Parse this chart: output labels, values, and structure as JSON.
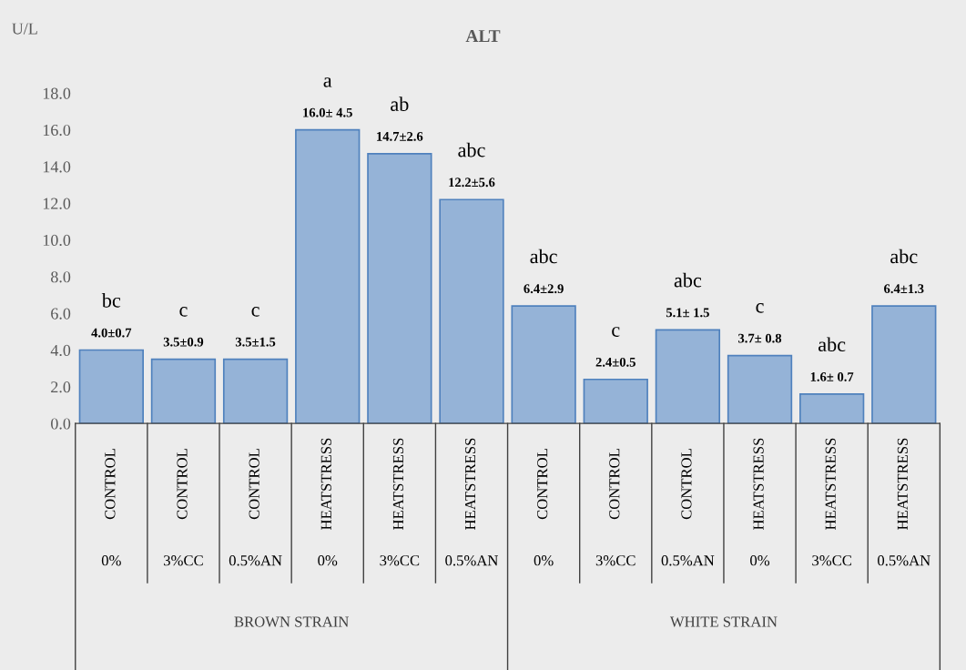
{
  "chart_data": {
    "type": "bar",
    "title": "ALT",
    "ylabel": "U/L",
    "categories": [
      "CONTROL",
      "CONTROL",
      "CONTROL",
      "HEATSTRESS",
      "HEATSTRESS",
      "HEATSTRESS",
      "CONTROL",
      "CONTROL",
      "CONTROL",
      "HEATSTRESS",
      "HEATSTRESS",
      "HEATSTRESS"
    ],
    "values": [
      4.0,
      3.5,
      3.5,
      16.0,
      14.7,
      12.2,
      6.4,
      2.4,
      5.1,
      3.7,
      1.6,
      6.4
    ],
    "value_labels": [
      "4.0±0.7",
      "3.5±0.9",
      "3.5±1.5",
      "16.0± 4.5",
      "14.7±2.6",
      "12.2±5.6",
      "6.4±2.9",
      "2.4±0.5",
      "5.1± 1.5",
      "3.7± 0.8",
      "1.6± 0.7",
      "6.4±1.3"
    ],
    "color": "#95b3d7",
    "ylim": [
      0,
      18
    ],
    "yticks": [
      {
        "value": 0,
        "label": "0.0"
      },
      {
        "value": 2,
        "label": "2.0"
      },
      {
        "value": 4,
        "label": "4.0"
      },
      {
        "value": 6,
        "label": "6.0"
      },
      {
        "value": 8,
        "label": "8.0"
      },
      {
        "value": 10,
        "label": "10.0"
      },
      {
        "value": 12,
        "label": "12.0"
      },
      {
        "value": 14,
        "label": "14.0"
      },
      {
        "value": 16,
        "label": "16.0"
      },
      {
        "value": 18,
        "label": "18.0"
      }
    ],
    "annotations": [
      "bc",
      "c",
      "c",
      "a",
      "ab",
      "abc",
      "abc",
      "c",
      "abc",
      "c",
      "abc",
      "abc",
      "0%",
      "3%CC",
      "0.5%AN",
      "0%",
      "3%CC",
      "0.5%AN",
      "0%",
      "3%CC",
      "0.5%AN",
      "0%",
      "3%CC",
      "0.5%AN",
      "BROWN STRAIN",
      "WHITE STRAIN"
    ],
    "grid": false,
    "legend": false
  }
}
